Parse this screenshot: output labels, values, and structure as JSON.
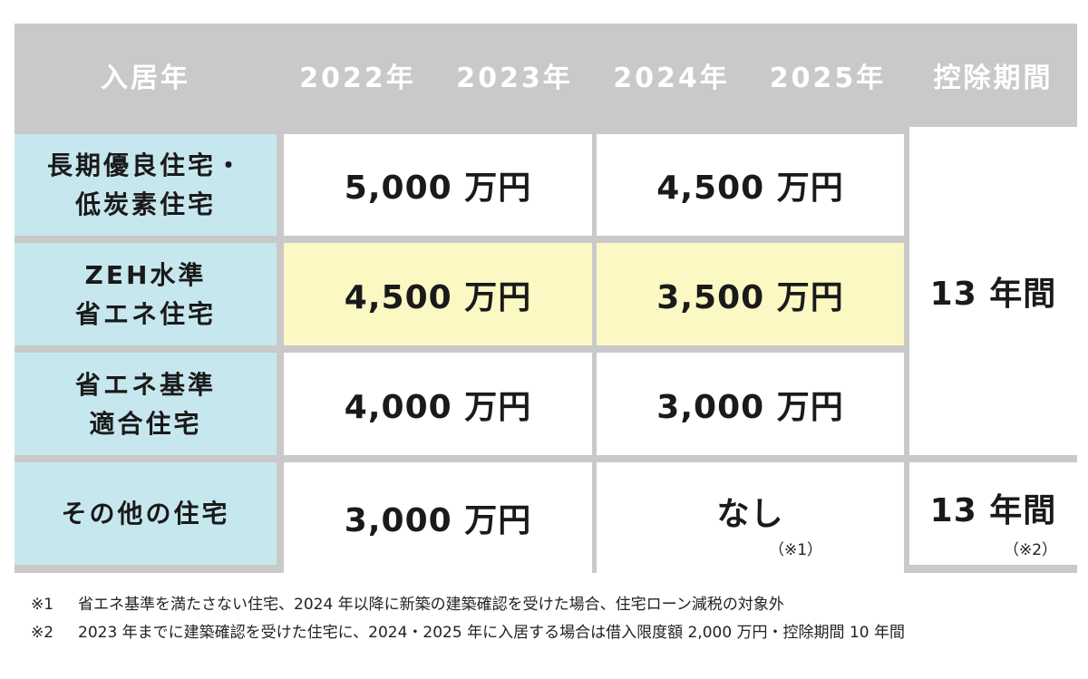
{
  "header": {
    "col_year": "入居年",
    "years": [
      "2022年",
      "2023年",
      "2024年",
      "2025年"
    ],
    "col_period": "控除期間"
  },
  "rows": [
    {
      "label_line1": "長期優良住宅・",
      "label_line2": "低炭素住宅",
      "v2022_23": "5,000 万円",
      "v2024_25": "4,500 万円"
    },
    {
      "label_line1": "ZEH水準",
      "label_line2": "省エネ住宅",
      "v2022_23": "4,500 万円",
      "v2024_25": "3,500 万円"
    },
    {
      "label_line1": "省エネ基準",
      "label_line2": "適合住宅",
      "v2022_23": "4,000 万円",
      "v2024_25": "3,000 万円"
    },
    {
      "label_line1": "その他の住宅",
      "v2022_23": "3,000 万円",
      "v2024_25": "なし",
      "v2024_25_note": "（※1）"
    }
  ],
  "period": {
    "merged": "13 年間",
    "other": "13 年間",
    "other_note": "（※2）"
  },
  "highlight_color": "#fbf8c3",
  "label_color": "#c7e7ee",
  "header_color": "#c9c9c9",
  "footnotes": [
    {
      "mark": "※1",
      "text": "省エネ基準を満たさない住宅、2024 年以降に新築の建築確認を受けた場合、住宅ローン減税の対象外"
    },
    {
      "mark": "※2",
      "text": "2023 年までに建築確認を受けた住宅に、2024・2025 年に入居する場合は借入限度額 2,000 万円・控除期間 10 年間"
    }
  ]
}
